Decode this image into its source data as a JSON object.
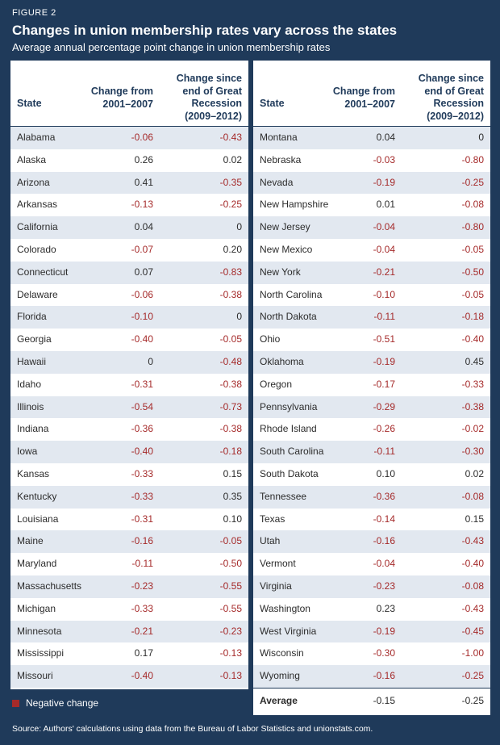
{
  "figure_label": "FIGURE 2",
  "title": "Changes in union membership rates vary across the states",
  "subtitle": "Average annual percentage point change in union membership rates",
  "headers": {
    "state": "State",
    "col1": [
      "Change from",
      "2001–2007"
    ],
    "col2": [
      "Change since",
      "end of Great",
      "Recession",
      "(2009–2012)"
    ]
  },
  "colors": {
    "negative": "#a52a2a",
    "header": "#1f3a5a",
    "band": "#e2e8f0"
  },
  "legend": {
    "label": "Negative change"
  },
  "source": "Source: Authors' calculations using data from the Bureau of Labor Statistics and unionstats.com.",
  "chart_data": {
    "type": "table",
    "columns": [
      "State",
      "Change from 2001–2007",
      "Change since end of Great Recession (2009–2012)"
    ],
    "left_rows": [
      [
        "Alabama",
        "-0.06",
        "-0.43"
      ],
      [
        "Alaska",
        "0.26",
        "0.02"
      ],
      [
        "Arizona",
        "0.41",
        "-0.35"
      ],
      [
        "Arkansas",
        "-0.13",
        "-0.25"
      ],
      [
        "California",
        "0.04",
        "0"
      ],
      [
        "Colorado",
        "-0.07",
        "0.20"
      ],
      [
        "Connecticut",
        "0.07",
        "-0.83"
      ],
      [
        "Delaware",
        "-0.06",
        "-0.38"
      ],
      [
        "Florida",
        "-0.10",
        "0"
      ],
      [
        "Georgia",
        "-0.40",
        "-0.05"
      ],
      [
        "Hawaii",
        "0",
        "-0.48"
      ],
      [
        "Idaho",
        "-0.31",
        "-0.38"
      ],
      [
        "Illinois",
        "-0.54",
        "-0.73"
      ],
      [
        "Indiana",
        "-0.36",
        "-0.38"
      ],
      [
        "Iowa",
        "-0.40",
        "-0.18"
      ],
      [
        "Kansas",
        "-0.33",
        "0.15"
      ],
      [
        "Kentucky",
        "-0.33",
        "0.35"
      ],
      [
        "Louisiana",
        "-0.31",
        "0.10"
      ],
      [
        "Maine",
        "-0.16",
        "-0.05"
      ],
      [
        "Maryland",
        "-0.11",
        "-0.50"
      ],
      [
        "Massachusetts",
        "-0.23",
        "-0.55"
      ],
      [
        "Michigan",
        "-0.33",
        "-0.55"
      ],
      [
        "Minnesota",
        "-0.21",
        "-0.23"
      ],
      [
        "Mississippi",
        "0.17",
        "-0.13"
      ],
      [
        "Missouri",
        "-0.40",
        "-0.13"
      ]
    ],
    "right_rows": [
      [
        "Montana",
        "0.04",
        "0"
      ],
      [
        "Nebraska",
        "-0.03",
        "-0.80"
      ],
      [
        "Nevada",
        "-0.19",
        "-0.25"
      ],
      [
        "New Hampshire",
        "0.01",
        "-0.08"
      ],
      [
        "New Jersey",
        "-0.04",
        "-0.80"
      ],
      [
        "New Mexico",
        "-0.04",
        "-0.05"
      ],
      [
        "New York",
        "-0.21",
        "-0.50"
      ],
      [
        "North Carolina",
        "-0.10",
        "-0.05"
      ],
      [
        "North Dakota",
        "-0.11",
        "-0.18"
      ],
      [
        "Ohio",
        "-0.51",
        "-0.40"
      ],
      [
        "Oklahoma",
        "-0.19",
        "0.45"
      ],
      [
        "Oregon",
        "-0.17",
        "-0.33"
      ],
      [
        "Pennsylvania",
        "-0.29",
        "-0.38"
      ],
      [
        "Rhode Island",
        "-0.26",
        "-0.02"
      ],
      [
        "South Carolina",
        "-0.11",
        "-0.30"
      ],
      [
        "South Dakota",
        "0.10",
        "0.02"
      ],
      [
        "Tennessee",
        "-0.36",
        "-0.08"
      ],
      [
        "Texas",
        "-0.14",
        "0.15"
      ],
      [
        "Utah",
        "-0.16",
        "-0.43"
      ],
      [
        "Vermont",
        "-0.04",
        "-0.40"
      ],
      [
        "Virginia",
        "-0.23",
        "-0.08"
      ],
      [
        "Washington",
        "0.23",
        "-0.43"
      ],
      [
        "West Virginia",
        "-0.19",
        "-0.45"
      ],
      [
        "Wisconsin",
        "-0.30",
        "-1.00"
      ],
      [
        "Wyoming",
        "-0.16",
        "-0.25"
      ]
    ],
    "average": [
      "Average",
      "-0.15",
      "-0.25"
    ]
  }
}
